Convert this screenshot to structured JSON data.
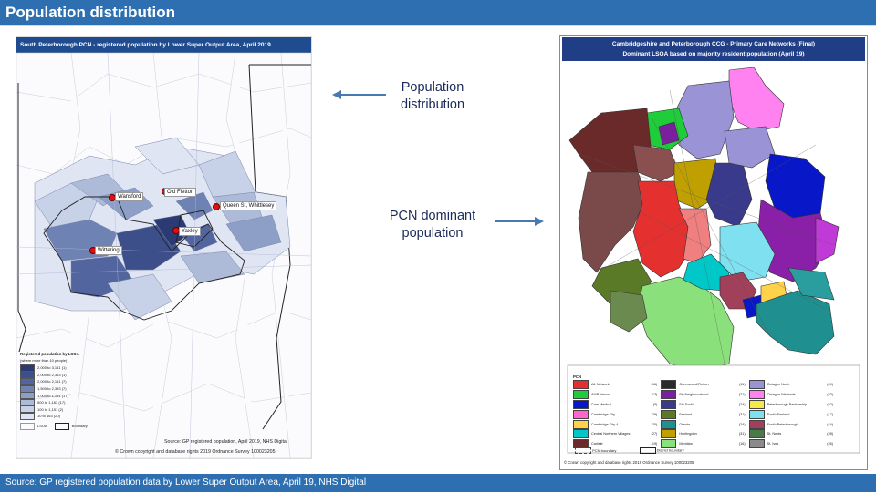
{
  "header": {
    "title": "Population distribution"
  },
  "footer": {
    "source": "Source: GP registered population data by Lower Super Output Area, April 19, NHS Digital"
  },
  "annotations": {
    "population_distribution": "Population distribution",
    "pcn_dominant": "PCN dominant population"
  },
  "left_map": {
    "title": "South Peterborough PCN - registered population by Lower Super Output Area, April 2019",
    "towns": [
      {
        "name": "Wansford"
      },
      {
        "name": "Old Fletton"
      },
      {
        "name": "Queen St, Whittlesey"
      },
      {
        "name": "Yaxley"
      },
      {
        "name": "Wittering"
      }
    ],
    "legend": {
      "title": "Registered population by LSOA",
      "subtitle": "(where more than 10 people)",
      "rows": [
        {
          "label": "2,000  to  3,141  (1)",
          "color": "#2c3a73"
        },
        {
          "label": "2,000  to  2,363  (1)",
          "color": "#3c4f8a"
        },
        {
          "label": "2,000  to  2,161  (7)",
          "color": "#52659f"
        },
        {
          "label": "1,500  to  2,393  (7)",
          "color": "#6f82b4"
        },
        {
          "label": "1,000  to  1,161  (17)",
          "color": "#8e9fc7"
        },
        {
          "label": "500  to  1,163  (17)",
          "color": "#adbbd9"
        },
        {
          "label": "100  to  1,151  (2)",
          "color": "#c7d1e8"
        },
        {
          "label": "10  to  163  (20)",
          "color": "#dfe5f3"
        }
      ],
      "boundary_lsoa": "LSOA",
      "boundary_other": "Boundary"
    },
    "source": "Source: GP registered population, April 2019, NHS Digital",
    "copyright": "© Crown copyright and database rights 2019 Ordnance Survey 100023205"
  },
  "right_map": {
    "title_line1": "Cambridgeshire and Peterborough CCG - Primary Care Networks (Final)",
    "title_line2": "Dominant LSOA based on majority resident population (April 19)",
    "legend_title": "PCN",
    "legend": [
      {
        "name": "A1 Network",
        "count": "(16)",
        "color": "#e53030"
      },
      {
        "name": "Greenwood/Fletton",
        "count": "(11)",
        "color": "#2b2b2b"
      },
      {
        "name": "Octagon North",
        "count": "(49)",
        "color": "#9a94d6"
      },
      {
        "name": "AMP Nexus",
        "count": "(13)",
        "color": "#1fcc3a"
      },
      {
        "name": "Fly Neighbourhood",
        "count": "(21)",
        "color": "#7a1f9e"
      },
      {
        "name": "Octagon Wetlands",
        "count": "(23)",
        "color": "#ff82f0"
      },
      {
        "name": "Cam Medical",
        "count": "(5)",
        "color": "#0818c8"
      },
      {
        "name": "Ely South",
        "count": "(24)",
        "color": "#3a3a8c"
      },
      {
        "name": "Peterborough Partnership",
        "count": "(22)",
        "color": "#f4e84a"
      },
      {
        "name": "Cambridge City",
        "count": "(29)",
        "color": "#ff66cc"
      },
      {
        "name": "Fenland",
        "count": "(31)",
        "color": "#5a7a28"
      },
      {
        "name": "South Fenland",
        "count": "(17)",
        "color": "#7fe0f0"
      },
      {
        "name": "Cambridge City 4",
        "count": "(20)",
        "color": "#ffd24a"
      },
      {
        "name": "Granta",
        "count": "(24)",
        "color": "#1f8f8f"
      },
      {
        "name": "South Peterborough",
        "count": "(44)",
        "color": "#a0405a"
      },
      {
        "name": "Central Northern Villages",
        "count": "(27)",
        "color": "#00c8c8"
      },
      {
        "name": "Huntingdon",
        "count": "(31)",
        "color": "#c0a000"
      },
      {
        "name": "St. Neots",
        "count": "(28)",
        "color": "#4a7a48"
      },
      {
        "name": "Carlisle",
        "count": "(19)",
        "color": "#6a2a2a"
      },
      {
        "name": "Meridian",
        "count": "(16)",
        "color": "#8ae07a"
      },
      {
        "name": "St. Ives",
        "count": "(26)",
        "color": "#8a8a8a"
      }
    ],
    "boundary_pcn": "PCN boundary",
    "boundary_district": "District boundary",
    "copyright": "© Crown copyright and database rights 2019 Ordnance Survey 100023205"
  },
  "colors": {
    "header_bg": "#2d6fb0",
    "map_title_bg": "#1f4b8f",
    "arrow": "#4a78b0"
  }
}
